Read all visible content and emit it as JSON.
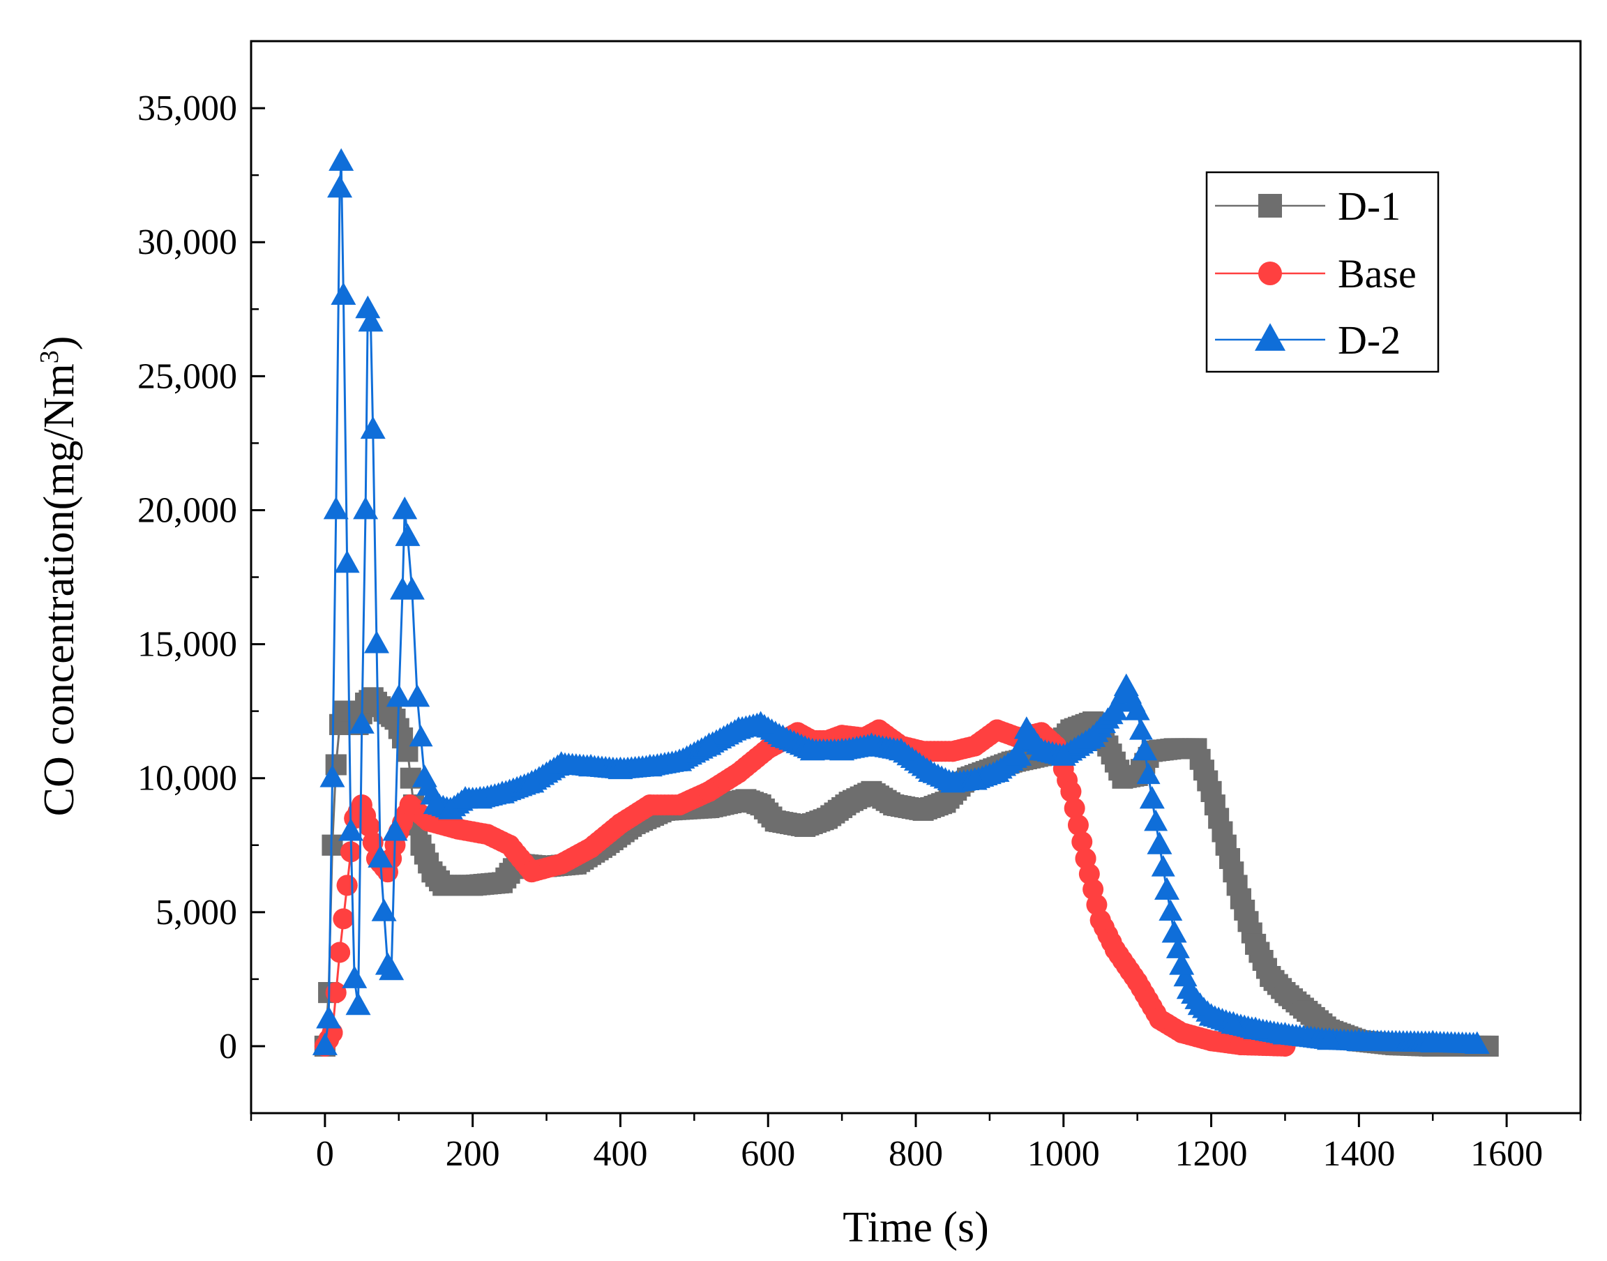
{
  "chart_data": {
    "type": "line",
    "title": "",
    "xlabel": "Time (s)",
    "ylabel_main": "CO concentration(mg/Nm",
    "ylabel_sup": "3",
    "ylabel_close": ")",
    "xlim": [
      -100,
      1700
    ],
    "ylim": [
      -2500,
      37500
    ],
    "x_ticks": [
      0,
      200,
      400,
      600,
      800,
      1000,
      1200,
      1400,
      1600
    ],
    "x_tick_labels": [
      "0",
      "200",
      "400",
      "600",
      "800",
      "1000",
      "1200",
      "1400",
      "1600"
    ],
    "y_ticks": [
      0,
      5000,
      10000,
      15000,
      20000,
      25000,
      30000,
      35000
    ],
    "y_tick_labels": [
      "0",
      "5,000",
      "10,000",
      "15,000",
      "20,000",
      "25,000",
      "30,000",
      "35,000"
    ],
    "legend_position": "top-right",
    "series": [
      {
        "name": "D-1",
        "color": "#6e6e6e",
        "marker": "square",
        "points": [
          [
            0,
            0
          ],
          [
            5,
            2000
          ],
          [
            10,
            7500
          ],
          [
            15,
            10500
          ],
          [
            20,
            12000
          ],
          [
            25,
            12500
          ],
          [
            35,
            12500
          ],
          [
            45,
            12000
          ],
          [
            55,
            12800
          ],
          [
            65,
            13000
          ],
          [
            80,
            12500
          ],
          [
            95,
            12200
          ],
          [
            105,
            11500
          ],
          [
            112,
            11000
          ],
          [
            120,
            9000
          ],
          [
            130,
            7500
          ],
          [
            145,
            6500
          ],
          [
            160,
            6000
          ],
          [
            200,
            6000
          ],
          [
            240,
            6100
          ],
          [
            260,
            6800
          ],
          [
            300,
            6700
          ],
          [
            340,
            6800
          ],
          [
            380,
            7500
          ],
          [
            420,
            8300
          ],
          [
            460,
            8800
          ],
          [
            520,
            8900
          ],
          [
            570,
            9200
          ],
          [
            590,
            9000
          ],
          [
            610,
            8400
          ],
          [
            650,
            8200
          ],
          [
            680,
            8500
          ],
          [
            710,
            9100
          ],
          [
            740,
            9500
          ],
          [
            770,
            9000
          ],
          [
            810,
            8800
          ],
          [
            840,
            9100
          ],
          [
            870,
            10000
          ],
          [
            930,
            10600
          ],
          [
            980,
            10900
          ],
          [
            1010,
            11800
          ],
          [
            1040,
            12100
          ],
          [
            1060,
            11200
          ],
          [
            1080,
            10000
          ],
          [
            1100,
            10100
          ],
          [
            1120,
            11000
          ],
          [
            1150,
            11100
          ],
          [
            1180,
            11100
          ],
          [
            1200,
            9500
          ],
          [
            1220,
            7500
          ],
          [
            1240,
            5500
          ],
          [
            1260,
            3800
          ],
          [
            1280,
            2600
          ],
          [
            1300,
            2000
          ],
          [
            1330,
            1300
          ],
          [
            1360,
            600
          ],
          [
            1400,
            200
          ],
          [
            1450,
            50
          ],
          [
            1500,
            0
          ],
          [
            1575,
            0
          ]
        ]
      },
      {
        "name": "Base",
        "color": "#ff4040",
        "marker": "circle",
        "points": [
          [
            0,
            0
          ],
          [
            10,
            500
          ],
          [
            20,
            3500
          ],
          [
            30,
            6000
          ],
          [
            40,
            8500
          ],
          [
            50,
            9000
          ],
          [
            60,
            8200
          ],
          [
            70,
            7000
          ],
          [
            85,
            6500
          ],
          [
            100,
            8000
          ],
          [
            115,
            9000
          ],
          [
            140,
            8400
          ],
          [
            180,
            8100
          ],
          [
            220,
            7900
          ],
          [
            250,
            7500
          ],
          [
            280,
            6500
          ],
          [
            320,
            6800
          ],
          [
            360,
            7400
          ],
          [
            400,
            8300
          ],
          [
            440,
            9000
          ],
          [
            480,
            9000
          ],
          [
            520,
            9500
          ],
          [
            560,
            10200
          ],
          [
            600,
            11100
          ],
          [
            640,
            11700
          ],
          [
            660,
            11400
          ],
          [
            680,
            11400
          ],
          [
            700,
            11600
          ],
          [
            730,
            11500
          ],
          [
            750,
            11800
          ],
          [
            780,
            11200
          ],
          [
            810,
            11000
          ],
          [
            850,
            11000
          ],
          [
            880,
            11200
          ],
          [
            910,
            11800
          ],
          [
            940,
            11500
          ],
          [
            970,
            11700
          ],
          [
            990,
            11200
          ],
          [
            1010,
            9500
          ],
          [
            1030,
            7000
          ],
          [
            1050,
            4700
          ],
          [
            1070,
            3600
          ],
          [
            1090,
            2800
          ],
          [
            1100,
            2400
          ],
          [
            1115,
            1700
          ],
          [
            1130,
            1000
          ],
          [
            1160,
            500
          ],
          [
            1200,
            200
          ],
          [
            1240,
            50
          ],
          [
            1300,
            0
          ]
        ]
      },
      {
        "name": "D-2",
        "color": "#0f6ed9",
        "marker": "triangle",
        "points": [
          [
            0,
            0
          ],
          [
            5,
            1000
          ],
          [
            10,
            10000
          ],
          [
            15,
            20000
          ],
          [
            20,
            32000
          ],
          [
            22,
            33000
          ],
          [
            25,
            28000
          ],
          [
            30,
            18000
          ],
          [
            35,
            8000
          ],
          [
            40,
            2500
          ],
          [
            45,
            1500
          ],
          [
            50,
            12000
          ],
          [
            55,
            20000
          ],
          [
            58,
            27500
          ],
          [
            62,
            27000
          ],
          [
            65,
            23000
          ],
          [
            70,
            15000
          ],
          [
            75,
            7000
          ],
          [
            80,
            5000
          ],
          [
            85,
            3000
          ],
          [
            90,
            2800
          ],
          [
            95,
            8000
          ],
          [
            100,
            13000
          ],
          [
            105,
            17000
          ],
          [
            108,
            20000
          ],
          [
            112,
            19000
          ],
          [
            118,
            17000
          ],
          [
            125,
            13000
          ],
          [
            135,
            10000
          ],
          [
            150,
            9000
          ],
          [
            170,
            8800
          ],
          [
            190,
            9200
          ],
          [
            210,
            9200
          ],
          [
            240,
            9400
          ],
          [
            280,
            9800
          ],
          [
            320,
            10500
          ],
          [
            360,
            10400
          ],
          [
            400,
            10300
          ],
          [
            440,
            10400
          ],
          [
            480,
            10600
          ],
          [
            520,
            11200
          ],
          [
            560,
            11800
          ],
          [
            590,
            12000
          ],
          [
            620,
            11500
          ],
          [
            660,
            11000
          ],
          [
            700,
            11000
          ],
          [
            740,
            11200
          ],
          [
            780,
            11000
          ],
          [
            820,
            10200
          ],
          [
            850,
            9800
          ],
          [
            880,
            9900
          ],
          [
            910,
            10200
          ],
          [
            940,
            10800
          ],
          [
            950,
            11800
          ],
          [
            970,
            11000
          ],
          [
            1000,
            10800
          ],
          [
            1040,
            11500
          ],
          [
            1070,
            12500
          ],
          [
            1085,
            13400
          ],
          [
            1100,
            12500
          ],
          [
            1110,
            11000
          ],
          [
            1120,
            9200
          ],
          [
            1130,
            7500
          ],
          [
            1140,
            5800
          ],
          [
            1150,
            4200
          ],
          [
            1160,
            3000
          ],
          [
            1170,
            2100
          ],
          [
            1185,
            1500
          ],
          [
            1200,
            1100
          ],
          [
            1230,
            800
          ],
          [
            1260,
            600
          ],
          [
            1300,
            400
          ],
          [
            1360,
            200
          ],
          [
            1400,
            150
          ],
          [
            1500,
            100
          ],
          [
            1560,
            50
          ]
        ]
      }
    ]
  }
}
